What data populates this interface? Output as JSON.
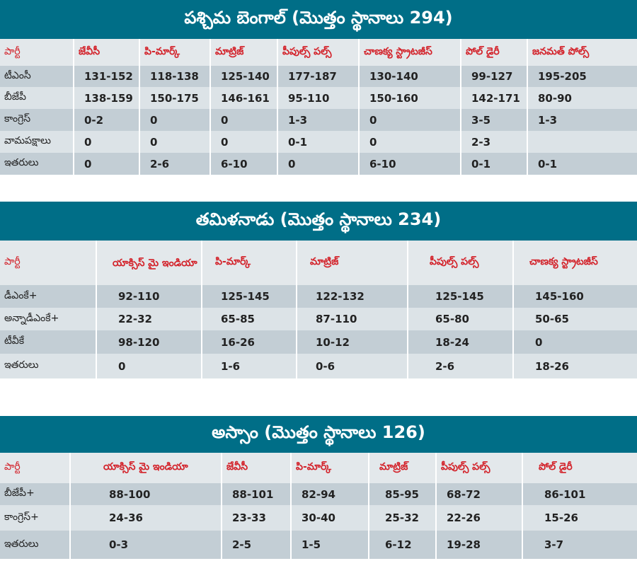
{
  "colors": {
    "title_bg": "#006e87",
    "header_text": "#d3222a",
    "row_dark": "#c3ced5",
    "row_light": "#dce3e7"
  },
  "tables": [
    {
      "id": "west-bengal",
      "title": "పశ్చిమ బెంగాల్ (మొత్తం స్థానాలు 294)",
      "headers": [
        "పార్టీ",
        "జేవీసీ",
        "పి-మార్క్",
        "మాట్రిజ్",
        "పీపుల్స్ పల్స్",
        "చాణక్య స్ట్రాటజీస్",
        "పోల్ డైరీ",
        "జనమత్ పోల్స్"
      ],
      "rows": [
        [
          "టీఎంసీ",
          "131-152",
          "118-138",
          "125-140",
          "177-187",
          "130-140",
          "99-127",
          "195-205"
        ],
        [
          "బీజేపీ",
          "138-159",
          "150-175",
          "146-161",
          "95-110",
          "150-160",
          "142-171",
          "80-90"
        ],
        [
          "కాంగ్రెస్",
          "0-2",
          "0",
          "0",
          "1-3",
          "0",
          "3-5",
          "1-3"
        ],
        [
          "వామపక్షాలు",
          "0",
          "0",
          "0",
          "0-1",
          "0",
          "2-3",
          ""
        ],
        [
          "ఇతరులు",
          "0",
          "2-6",
          "6-10",
          "0",
          "6-10",
          "0-1",
          "0-1"
        ]
      ]
    },
    {
      "id": "tamil-nadu",
      "title": "తమిళనాడు (మొత్తం స్థానాలు 234)",
      "headers": [
        "పార్టీ",
        "యాక్సిస్ మై ఇండియా",
        "పి-మార్క్",
        "మాట్రిజ్",
        "పీపుల్స్ పల్స్",
        "చాణక్య స్ట్రాటజీస్"
      ],
      "rows": [
        [
          "డీఎంకే+",
          "92-110",
          "125-145",
          "122-132",
          "125-145",
          "145-160"
        ],
        [
          "అన్నాడీఎంకే+",
          "22-32",
          "65-85",
          "87-110",
          "65-80",
          "50-65"
        ],
        [
          "టీవీకే",
          "98-120",
          "16-26",
          "10-12",
          "18-24",
          "0"
        ],
        [
          "ఇతరులు",
          "0",
          "1-6",
          "0-6",
          "2-6",
          "18-26"
        ]
      ]
    },
    {
      "id": "assam",
      "title": "అస్సాం (మొత్తం స్థానాలు 126)",
      "headers": [
        "పార్టీ",
        "యాక్సిస్ మై ఇండియా",
        "జేవీసీ",
        "పి-మార్క్",
        "మాట్రిజ్",
        "పీపుల్స్ పల్స్",
        "పోల్ డైరీ"
      ],
      "rows": [
        [
          "బీజేపీ+",
          "88-100",
          "88-101",
          "82-94",
          "85-95",
          "68-72",
          "86-101"
        ],
        [
          "కాంగ్రెస్+",
          "24-36",
          "23-33",
          "30-40",
          "25-32",
          "22-26",
          "15-26"
        ],
        [
          "ఇతరులు",
          "0-3",
          "2-5",
          "1-5",
          "6-12",
          "19-28",
          "3-7"
        ]
      ]
    }
  ]
}
